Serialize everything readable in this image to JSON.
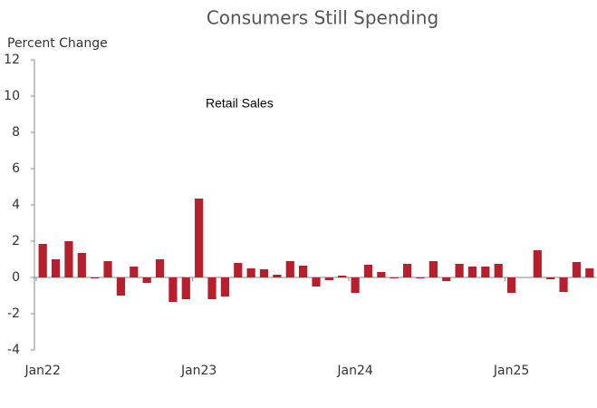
{
  "chart_data": {
    "type": "bar",
    "title": "Consumers Still Spending",
    "y_label": "Percent Change",
    "annotation": "Retail Sales",
    "categories": [
      "Jan22",
      null,
      null,
      null,
      null,
      null,
      null,
      null,
      null,
      null,
      null,
      null,
      "Jan23",
      null,
      null,
      null,
      null,
      null,
      null,
      null,
      null,
      null,
      null,
      null,
      "Jan24",
      null,
      null,
      null,
      null,
      null,
      null,
      null,
      null,
      null,
      null,
      null,
      "Jan25",
      null,
      null,
      null,
      null,
      null,
      null
    ],
    "values": [
      1.85,
      1.0,
      2.0,
      1.35,
      -0.05,
      0.9,
      -1.0,
      0.6,
      -0.3,
      1.0,
      -1.35,
      -1.2,
      4.35,
      -1.2,
      -1.05,
      0.8,
      0.5,
      0.45,
      0.15,
      0.9,
      0.65,
      -0.5,
      -0.15,
      0.1,
      -0.85,
      0.7,
      0.3,
      -0.05,
      0.75,
      -0.05,
      0.9,
      -0.2,
      0.75,
      0.6,
      0.6,
      0.75,
      -0.85,
      0.0,
      1.5,
      -0.1,
      -0.8,
      0.85,
      0.5
    ],
    "color": "#b71f2c",
    "ylim": [
      -4,
      12
    ],
    "yticks": [
      -4,
      -2,
      0,
      2,
      4,
      6,
      8,
      10,
      12
    ],
    "grid": false
  }
}
